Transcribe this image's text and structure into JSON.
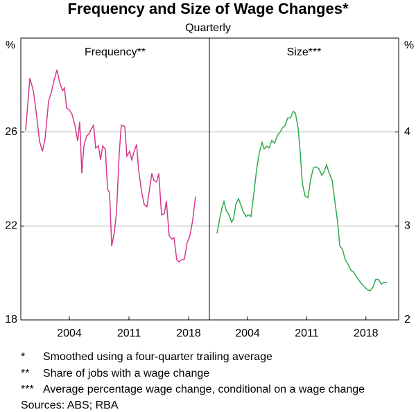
{
  "title": "Frequency and Size of Wage Changes*",
  "subtitle": "Quarterly",
  "notes": [
    {
      "marker": "*",
      "text": "Smoothed using a four-quarter trailing average"
    },
    {
      "marker": "**",
      "text": "Share of jobs with a wage change"
    },
    {
      "marker": "***",
      "text": "Average percentage wage change, conditional on a wage change"
    }
  ],
  "sources": "Sources: ABS; RBA",
  "chart_data": [
    {
      "type": "line",
      "title": "Frequency**",
      "ylabel": "%",
      "axis_side": "left",
      "grid": true,
      "xlim": [
        1998.3,
        2020.44
      ],
      "xticks": [
        2004,
        2011,
        2018
      ],
      "ylim": [
        18,
        30
      ],
      "yticks": [
        18,
        22,
        26
      ],
      "series": [
        {
          "name": "Frequency",
          "color": "#d6368a",
          "x": [
            1998.87,
            1999.36,
            1999.77,
            2000.09,
            2000.5,
            2000.83,
            2001.15,
            2001.56,
            2001.88,
            2002.21,
            2002.54,
            2002.86,
            2003.19,
            2003.43,
            2003.67,
            2004.0,
            2004.33,
            2004.65,
            2004.98,
            2005.22,
            2005.46,
            2005.71,
            2006.03,
            2006.28,
            2006.6,
            2006.85,
            2007.09,
            2007.42,
            2007.66,
            2007.91,
            2008.23,
            2008.48,
            2008.72,
            2008.97,
            2009.29,
            2009.54,
            2009.86,
            2010.1,
            2010.51,
            2010.75,
            2011.08,
            2011.32,
            2011.57,
            2011.89,
            2012.14,
            2012.46,
            2012.79,
            2013.11,
            2013.35,
            2013.68,
            2013.92,
            2014.25,
            2014.5,
            2014.82,
            2015.15,
            2015.39,
            2015.72,
            2016.04,
            2016.29,
            2016.61,
            2016.86,
            2017.18,
            2017.51,
            2017.83,
            2018.16,
            2018.48,
            2018.81
          ],
          "values": [
            26.06,
            28.29,
            27.76,
            26.88,
            25.62,
            25.18,
            25.71,
            27.32,
            27.68,
            28.21,
            28.65,
            28.12,
            27.76,
            27.88,
            27.03,
            26.94,
            26.74,
            26.29,
            25.62,
            26.44,
            24.24,
            25.41,
            25.85,
            25.91,
            26.15,
            26.29,
            25.32,
            25.41,
            24.82,
            25.41,
            25.26,
            23.59,
            23.41,
            21.15,
            21.74,
            22.62,
            25.12,
            26.29,
            26.24,
            24.97,
            25.18,
            24.82,
            25.12,
            25.47,
            24.38,
            23.5,
            22.91,
            22.82,
            23.41,
            24.24,
            23.94,
            23.88,
            24.24,
            22.47,
            22.53,
            23.06,
            21.59,
            21.44,
            21.5,
            20.56,
            20.47,
            20.56,
            20.59,
            21.29,
            21.59,
            22.24,
            23.26
          ]
        }
      ]
    },
    {
      "type": "line",
      "title": "Size***",
      "ylabel": "%",
      "axis_side": "right",
      "grid": true,
      "xlim": [
        1999.49,
        2021.87
      ],
      "xticks": [
        2004,
        2011,
        2018
      ],
      "ylim": [
        2,
        5
      ],
      "yticks": [
        2,
        3,
        4
      ],
      "series": [
        {
          "name": "Size",
          "color": "#2eaa4a",
          "x": [
            2000.39,
            2000.72,
            2000.97,
            2001.21,
            2001.46,
            2001.79,
            2002.11,
            2002.36,
            2002.61,
            2002.93,
            2003.18,
            2003.51,
            2003.84,
            2004.08,
            2004.41,
            2004.74,
            2005.07,
            2005.39,
            2005.72,
            2005.97,
            2006.3,
            2006.54,
            2006.87,
            2007.2,
            2007.52,
            2007.85,
            2008.1,
            2008.43,
            2008.75,
            2009.08,
            2009.41,
            2009.66,
            2009.98,
            2010.23,
            2010.48,
            2010.8,
            2011.13,
            2011.46,
            2011.79,
            2012.11,
            2012.44,
            2012.77,
            2013.02,
            2013.34,
            2013.67,
            2014.0,
            2014.33,
            2014.66,
            2014.9,
            2015.23,
            2015.56,
            2015.89,
            2016.21,
            2016.54,
            2016.87,
            2017.2,
            2017.52,
            2017.85,
            2018.18,
            2018.51,
            2018.84,
            2019.16,
            2019.49,
            2019.82,
            2020.15,
            2020.48
          ],
          "values": [
            2.92,
            3.08,
            3.19,
            3.26,
            3.17,
            3.12,
            3.04,
            3.08,
            3.23,
            3.29,
            3.23,
            3.15,
            3.1,
            3.12,
            3.1,
            3.34,
            3.6,
            3.78,
            3.89,
            3.82,
            3.85,
            3.83,
            3.91,
            3.88,
            3.96,
            4.0,
            4.04,
            4.07,
            4.15,
            4.15,
            4.22,
            4.2,
            4.04,
            3.78,
            3.45,
            3.32,
            3.3,
            3.49,
            3.62,
            3.63,
            3.61,
            3.54,
            3.57,
            3.65,
            3.56,
            3.49,
            3.26,
            3.04,
            2.79,
            2.75,
            2.64,
            2.59,
            2.53,
            2.51,
            2.46,
            2.42,
            2.38,
            2.35,
            2.32,
            2.31,
            2.35,
            2.43,
            2.43,
            2.38,
            2.4,
            2.4
          ]
        }
      ]
    }
  ]
}
